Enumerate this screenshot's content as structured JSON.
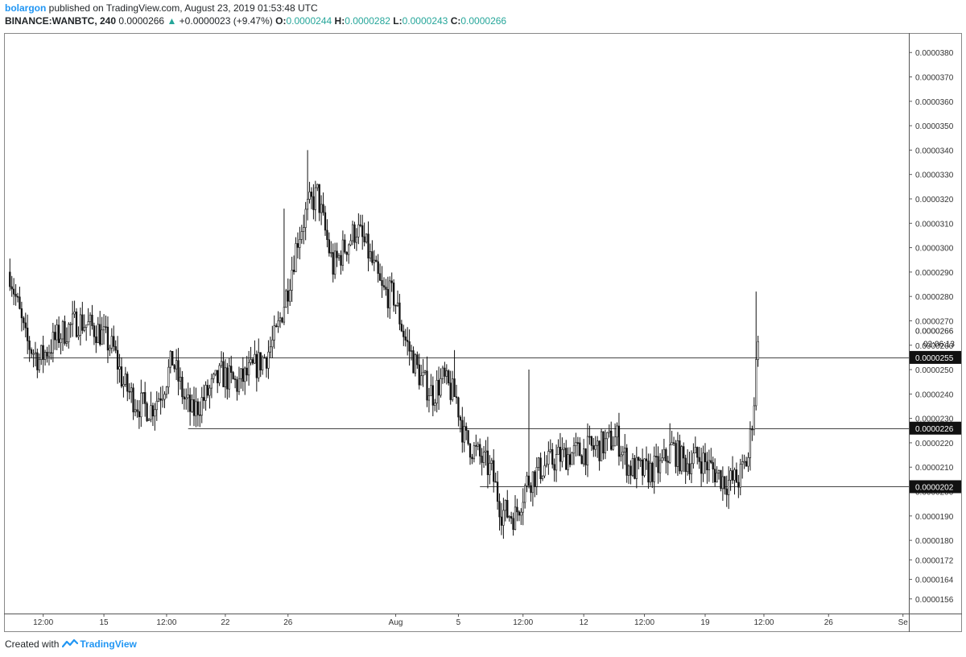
{
  "header": {
    "author": "bolargon",
    "published": "published on TradingView.com, August 23, 2019 01:53:48 UTC",
    "symbol": "BINANCE:WANBTC, 240",
    "last": "0.0000266",
    "change": "+0.0000023 (+9.47%)",
    "o_label": "O:",
    "o_value": "0.0000244",
    "h_label": "H:",
    "h_value": "0.0000282",
    "l_label": "L:",
    "l_value": "0.0000243",
    "c_label": "C:",
    "c_value": "0.0000266"
  },
  "footer": {
    "created_with": "Created with",
    "brand": "TradingView"
  },
  "chart_data": {
    "type": "candlestick",
    "title": "",
    "ylim": [
      1.5e-05,
      3.88e-05
    ],
    "x_ticks": [
      "12:00",
      "15",
      "12:00",
      "22",
      "26",
      "Aug",
      "5",
      "12:00",
      "12",
      "12:00",
      "19",
      "12:00",
      "26",
      "Se"
    ],
    "y_ticks": [
      "0.0000156",
      "0.0000164",
      "0.0000172",
      "0.0000180",
      "0.0000190",
      "0.0000200",
      "0.0000210",
      "0.0000220",
      "0.0000230",
      "0.0000240",
      "0.0000250",
      "0.0000260",
      "0.0000270",
      "0.0000280",
      "0.0000290",
      "0.0000300",
      "0.0000310",
      "0.0000320",
      "0.0000330",
      "0.0000340",
      "0.0000350",
      "0.0000360",
      "0.0000370",
      "0.0000380"
    ],
    "y_tick_values": [
      1.56e-05,
      1.64e-05,
      1.72e-05,
      1.8e-05,
      1.9e-05,
      2e-05,
      2.1e-05,
      2.2e-05,
      2.3e-05,
      2.4e-05,
      2.5e-05,
      2.6e-05,
      2.7e-05,
      2.8e-05,
      2.9e-05,
      3e-05,
      3.1e-05,
      3.2e-05,
      3.3e-05,
      3.4e-05,
      3.5e-05,
      3.6e-05,
      3.7e-05,
      3.8e-05
    ],
    "price_labels": [
      {
        "value": 2.66e-05,
        "text": "0.0000266",
        "style": "plain"
      },
      {
        "value": 2.55e-05,
        "text": "0.0000255",
        "style": "dark"
      },
      {
        "value": 2.26e-05,
        "text": "0.0000226",
        "style": "dark"
      },
      {
        "value": 2.02e-05,
        "text": "0.0000202",
        "style": "dark"
      }
    ],
    "countdown": "02:06:13",
    "horizontal_lines": [
      {
        "value": 2.55e-05,
        "from_bar": 7
      },
      {
        "value": 2.26e-05,
        "from_bar": 91
      },
      {
        "value": 2.02e-05,
        "from_bar": 240
      }
    ],
    "anchor_points": [
      [
        0,
        2.9e-05
      ],
      [
        8,
        2.62e-05
      ],
      [
        15,
        2.54e-05
      ],
      [
        25,
        2.64e-05
      ],
      [
        35,
        2.7e-05
      ],
      [
        45,
        2.66e-05
      ],
      [
        53,
        2.58e-05
      ],
      [
        58,
        2.44e-05
      ],
      [
        65,
        2.36e-05
      ],
      [
        72,
        2.34e-05
      ],
      [
        78,
        2.42e-05
      ],
      [
        83,
        2.54e-05
      ],
      [
        89,
        2.38e-05
      ],
      [
        93,
        2.32e-05
      ],
      [
        99,
        2.38e-05
      ],
      [
        108,
        2.48e-05
      ],
      [
        116,
        2.44e-05
      ],
      [
        124,
        2.5e-05
      ],
      [
        131,
        2.56e-05
      ],
      [
        136,
        2.64e-05
      ],
      [
        142,
        2.84e-05
      ],
      [
        147,
        3.04e-05
      ],
      [
        152,
        3.16e-05
      ],
      [
        157,
        3.22e-05
      ],
      [
        160,
        3.1e-05
      ],
      [
        165,
        2.92e-05
      ],
      [
        171,
        3e-05
      ],
      [
        177,
        3.08e-05
      ],
      [
        183,
        2.98e-05
      ],
      [
        190,
        2.82e-05
      ],
      [
        196,
        2.8e-05
      ],
      [
        202,
        2.62e-05
      ],
      [
        210,
        2.46e-05
      ],
      [
        216,
        2.4e-05
      ],
      [
        221,
        2.46e-05
      ],
      [
        228,
        2.38e-05
      ],
      [
        232,
        2.22e-05
      ],
      [
        240,
        2.14e-05
      ],
      [
        246,
        2.08e-05
      ],
      [
        251,
        1.92e-05
      ],
      [
        258,
        1.9e-05
      ],
      [
        264,
        2.04e-05
      ],
      [
        272,
        2.1e-05
      ],
      [
        280,
        2.14e-05
      ],
      [
        290,
        2.16e-05
      ],
      [
        300,
        2.18e-05
      ],
      [
        310,
        2.22e-05
      ],
      [
        316,
        2.1e-05
      ],
      [
        324,
        2.08e-05
      ],
      [
        332,
        2.1e-05
      ],
      [
        338,
        2.18e-05
      ],
      [
        344,
        2.12e-05
      ],
      [
        352,
        2.14e-05
      ],
      [
        360,
        2.08e-05
      ],
      [
        366,
        2.04e-05
      ],
      [
        372,
        2.05e-05
      ],
      [
        377,
        2.14e-05
      ],
      [
        380,
        2.38e-05
      ],
      [
        382,
        2.66e-05
      ]
    ],
    "spikes": [
      {
        "bar": 140,
        "high": 3.16e-05
      },
      {
        "bar": 152,
        "high": 3.4e-05
      },
      {
        "bar": 227,
        "high": 2.58e-05
      },
      {
        "bar": 265,
        "high": 2.5e-05
      },
      {
        "bar": 310,
        "high": 2.28e-05
      },
      {
        "bar": 337,
        "high": 2.28e-05
      },
      {
        "bar": 381,
        "high": 2.82e-05
      }
    ],
    "x_range_bars": [
      -3,
      459
    ],
    "x_tick_bars": [
      17,
      48,
      80,
      110,
      142,
      197,
      229,
      262,
      293,
      324,
      355,
      385,
      418,
      456
    ]
  }
}
